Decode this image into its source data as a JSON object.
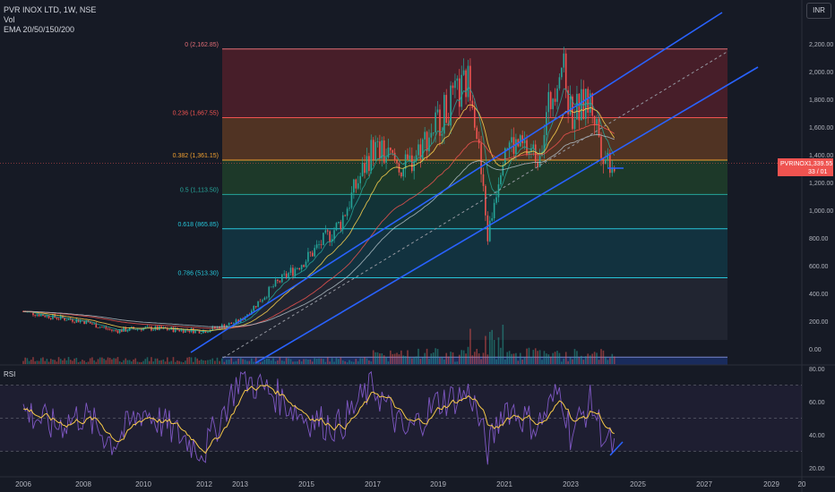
{
  "header": {
    "symbol_line": "PVR INOX LTD, 1W, NSE",
    "volume_label": "Vol",
    "ema_label": "EMA 20/50/150/200"
  },
  "currency": "INR",
  "rsi_label": "RSI",
  "price_badge": {
    "symbol": "PVRINOX",
    "price": "1,339.55",
    "sub": "33 / 01"
  },
  "colors": {
    "background": "#161a25",
    "trendline": "#2962ff",
    "candle_up": "#26a69a",
    "candle_down": "#ef5350",
    "rsi": "#7e57c2",
    "rsi_ma": "#f7c948",
    "price_line": "#ef5350"
  },
  "chart_data": [
    {
      "type": "candlestick",
      "x_axis": {
        "ticks": [
          "2006",
          "2008",
          "2010",
          "2012",
          "2013",
          "2015",
          "2017",
          "2019",
          "2021",
          "2023",
          "2025",
          "2027",
          "2029",
          "20"
        ]
      },
      "y_axis": {
        "ticks": [
          0,
          200,
          400,
          600,
          800,
          1000,
          1200,
          1400,
          1600,
          1800,
          2000,
          2200
        ],
        "tick_labels": [
          "0.00",
          "200.00",
          "400.00",
          "600.00",
          "800.00",
          "1,000.00",
          "1,200.00",
          "1,400.00",
          "1,600.00",
          "1,800.00",
          "2,000.00",
          "2,200.00"
        ]
      },
      "price_path": [
        [
          "2006",
          270
        ],
        [
          "2007",
          230
        ],
        [
          "2008",
          200
        ],
        [
          "2009",
          130
        ],
        [
          "2010",
          150
        ],
        [
          "2011",
          140
        ],
        [
          "2012",
          130
        ],
        [
          "2013",
          200
        ],
        [
          "2014",
          450
        ],
        [
          "2015",
          650
        ],
        [
          "2016",
          900
        ],
        [
          "2017",
          1450
        ],
        [
          "2018",
          1300
        ],
        [
          "2019",
          1650
        ],
        [
          "2020",
          1950
        ],
        [
          "2020.5",
          800
        ],
        [
          "2021",
          1500
        ],
        [
          "2022",
          1400
        ],
        [
          "2022.7",
          2100
        ],
        [
          "2023",
          1700
        ],
        [
          "2023.6",
          1780
        ],
        [
          "2024",
          1400
        ],
        [
          "2024.3",
          1340
        ]
      ],
      "fibonacci": [
        {
          "label": "0 (2,162.85)",
          "value": 2162.85
        },
        {
          "label": "0.236 (1,667.55)",
          "value": 1667.55
        },
        {
          "label": "0.382 (1,361.15)",
          "value": 1361.15
        },
        {
          "label": "0.5 (1,113.50)",
          "value": 1113.5
        },
        {
          "label": "0.618 (865.85)",
          "value": 865.85
        },
        {
          "label": "0.786 (513.30)",
          "value": 513.3
        }
      ],
      "current_price": 1339.55,
      "ema_periods": [
        20,
        50,
        150,
        200
      ]
    },
    {
      "type": "line",
      "name": "RSI",
      "y_axis": {
        "ticks": [
          20,
          40,
          60,
          80
        ],
        "tick_labels": [
          "20.00",
          "40.00",
          "60.00",
          "80.00"
        ]
      },
      "bands": [
        30,
        50,
        70
      ],
      "values": [
        [
          "2006",
          55
        ],
        [
          "2007",
          45
        ],
        [
          "2008",
          52
        ],
        [
          "2009",
          35
        ],
        [
          "2010",
          55
        ],
        [
          "2011",
          42
        ],
        [
          "2012",
          30
        ],
        [
          "2013",
          75
        ],
        [
          "2014",
          65
        ],
        [
          "2015",
          50
        ],
        [
          "2016",
          45
        ],
        [
          "2017",
          70
        ],
        [
          "2018",
          40
        ],
        [
          "2019",
          60
        ],
        [
          "2020",
          65
        ],
        [
          "2020.5",
          30
        ],
        [
          "2021",
          58
        ],
        [
          "2022",
          45
        ],
        [
          "2022.7",
          68
        ],
        [
          "2023",
          40
        ],
        [
          "2023.6",
          60
        ],
        [
          "2024",
          38
        ],
        [
          "2024.3",
          32
        ]
      ]
    }
  ]
}
